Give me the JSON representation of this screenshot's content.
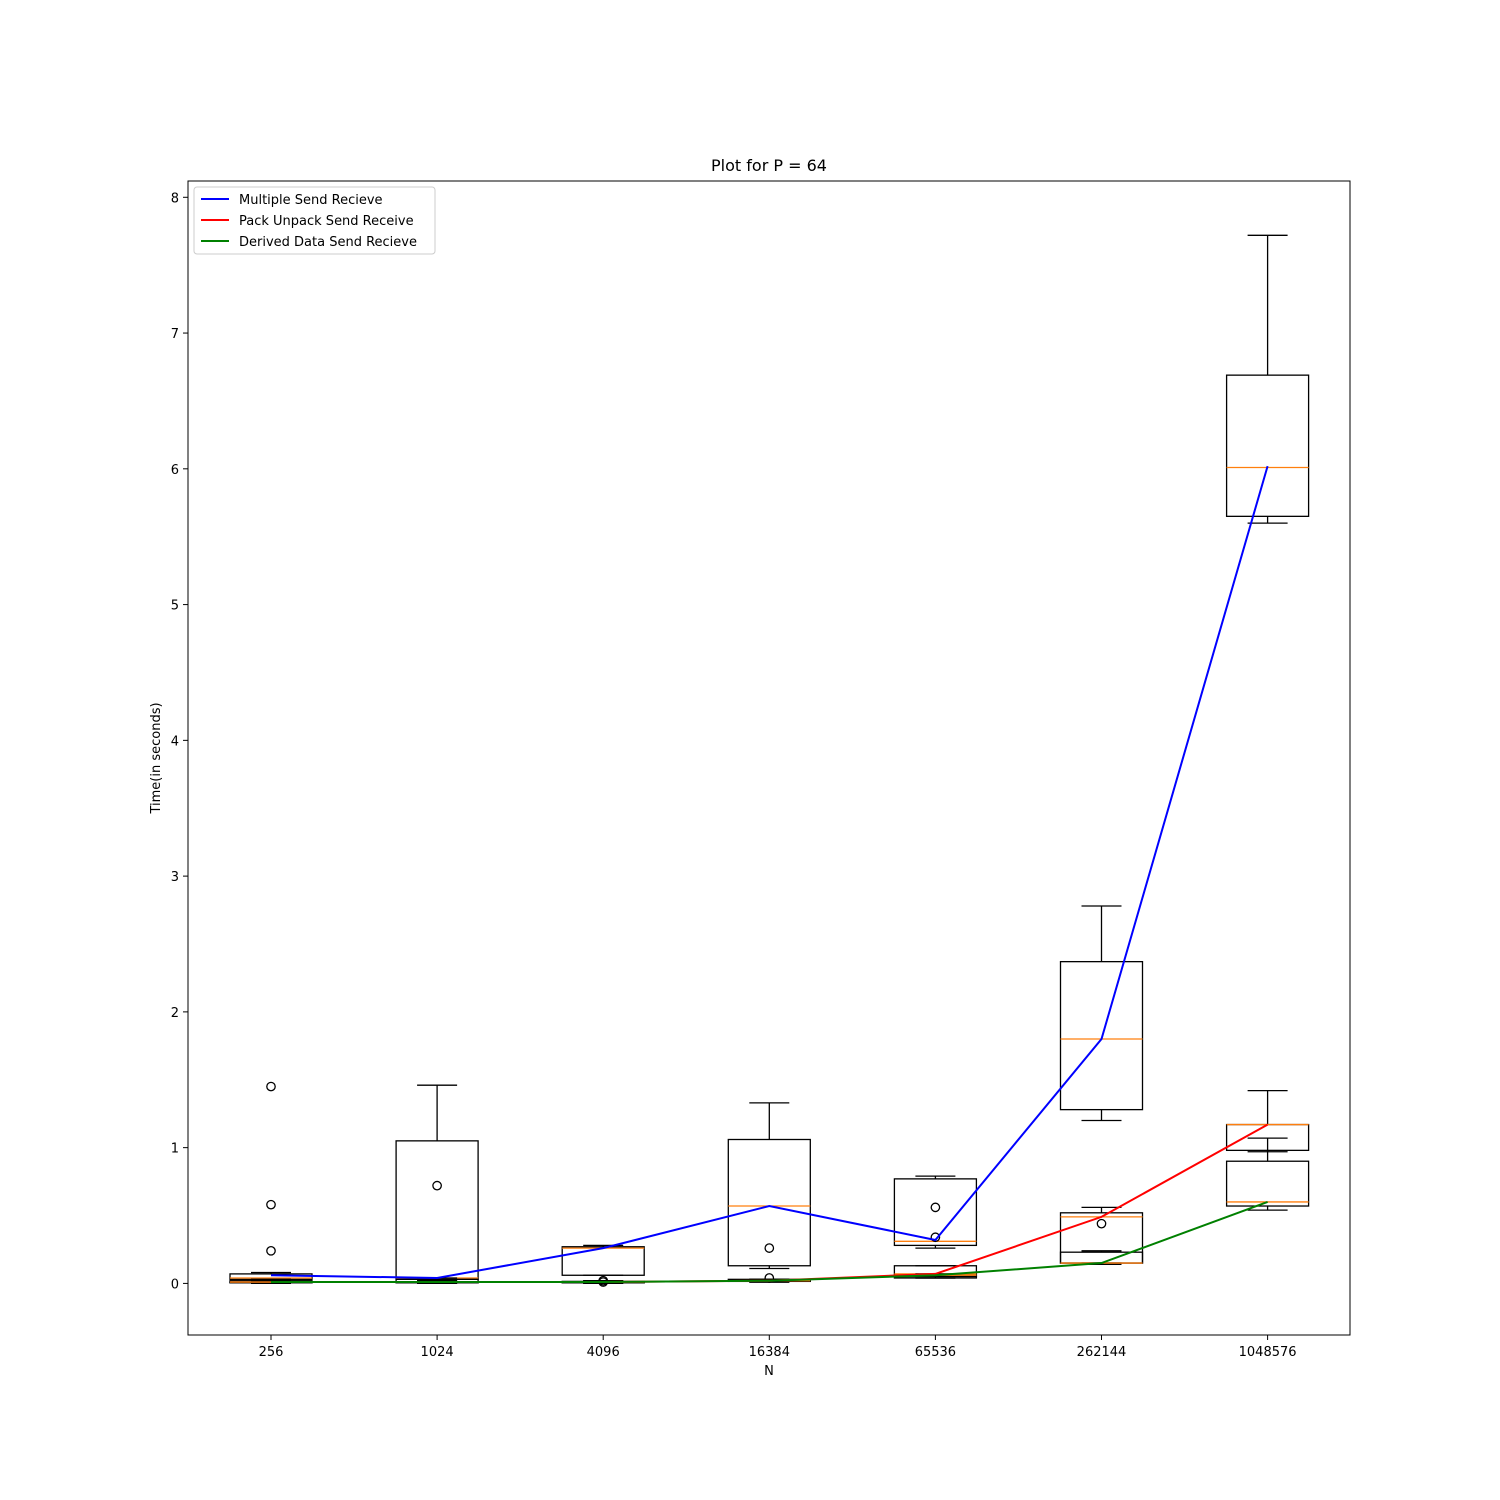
{
  "chart_data": {
    "type": "box",
    "title": "Plot for P = 64",
    "xlabel": "N",
    "ylabel": "Time(in seconds)",
    "ylim": [
      -0.38,
      8.12
    ],
    "yticks": [
      0,
      1,
      2,
      3,
      4,
      5,
      6,
      7,
      8
    ],
    "categories": [
      "256",
      "1024",
      "4096",
      "16384",
      "65536",
      "262144",
      "1048576"
    ],
    "legend_position": "upper-left",
    "series": [
      {
        "name": "Multiple Send Recieve",
        "color": "#0000ff",
        "line_values": [
          0.06,
          0.04,
          0.26,
          0.57,
          0.32,
          1.8,
          6.02
        ],
        "boxes": [
          {
            "whislo": 0.02,
            "q1": 0.03,
            "med": 0.04,
            "q3": 0.07,
            "whishi": 0.08,
            "fliers": [
              1.45,
              0.58,
              0.24
            ]
          },
          {
            "whislo": 0.02,
            "q1": 0.03,
            "med": 0.04,
            "q3": 1.05,
            "whishi": 1.46,
            "fliers": [
              0.72
            ]
          },
          {
            "whislo": 0.06,
            "q1": 0.06,
            "med": 0.26,
            "q3": 0.27,
            "whishi": 0.28,
            "fliers": [
              0.02,
              0.01
            ]
          },
          {
            "whislo": 0.11,
            "q1": 0.13,
            "med": 0.57,
            "q3": 1.06,
            "whishi": 1.33,
            "fliers": [
              0.26,
              0.04
            ]
          },
          {
            "whislo": 0.26,
            "q1": 0.28,
            "med": 0.31,
            "q3": 0.77,
            "whishi": 0.79,
            "fliers": [
              0.56,
              0.34
            ]
          },
          {
            "whislo": 1.2,
            "q1": 1.28,
            "med": 1.8,
            "q3": 2.37,
            "whishi": 2.78,
            "fliers": []
          },
          {
            "whislo": 5.6,
            "q1": 5.65,
            "med": 6.01,
            "q3": 6.69,
            "whishi": 7.72,
            "fliers": []
          }
        ]
      },
      {
        "name": "Pack Unpack Send Receive",
        "color": "#ff0000",
        "line_values": [
          0.01,
          0.01,
          0.01,
          0.02,
          0.07,
          0.49,
          1.17
        ],
        "boxes": [
          {
            "whislo": 0.0,
            "q1": 0.005,
            "med": 0.01,
            "q3": 0.02,
            "whishi": 0.03,
            "fliers": []
          },
          {
            "whislo": 0.0,
            "q1": 0.005,
            "med": 0.01,
            "q3": 0.03,
            "whishi": 0.04,
            "fliers": []
          },
          {
            "whislo": 0.0,
            "q1": 0.005,
            "med": 0.01,
            "q3": 0.015,
            "whishi": 0.02,
            "fliers": []
          },
          {
            "whislo": 0.01,
            "q1": 0.015,
            "med": 0.02,
            "q3": 0.03,
            "whishi": 0.03,
            "fliers": []
          },
          {
            "whislo": 0.04,
            "q1": 0.05,
            "med": 0.07,
            "q3": 0.13,
            "whishi": 0.13,
            "fliers": []
          },
          {
            "whislo": 0.15,
            "q1": 0.15,
            "med": 0.49,
            "q3": 0.52,
            "whishi": 0.56,
            "fliers": [
              0.44
            ]
          },
          {
            "whislo": 0.97,
            "q1": 0.98,
            "med": 1.17,
            "q3": 1.17,
            "whishi": 1.42,
            "fliers": []
          }
        ]
      },
      {
        "name": "Derived Data Send Recieve",
        "color": "#008000",
        "line_values": [
          0.01,
          0.01,
          0.01,
          0.02,
          0.06,
          0.15,
          0.6
        ],
        "boxes": [
          {
            "whislo": 0.0,
            "q1": 0.005,
            "med": 0.01,
            "q3": 0.01,
            "whishi": 0.02,
            "fliers": []
          },
          {
            "whislo": 0.0,
            "q1": 0.005,
            "med": 0.01,
            "q3": 0.01,
            "whishi": 0.02,
            "fliers": []
          },
          {
            "whislo": 0.0,
            "q1": 0.005,
            "med": 0.01,
            "q3": 0.01,
            "whishi": 0.02,
            "fliers": []
          },
          {
            "whislo": 0.01,
            "q1": 0.015,
            "med": 0.02,
            "q3": 0.02,
            "whishi": 0.03,
            "fliers": []
          },
          {
            "whislo": 0.04,
            "q1": 0.04,
            "med": 0.06,
            "q3": 0.06,
            "whishi": 0.07,
            "fliers": []
          },
          {
            "whislo": 0.14,
            "q1": 0.15,
            "med": 0.15,
            "q3": 0.23,
            "whishi": 0.24,
            "fliers": []
          },
          {
            "whislo": 0.54,
            "q1": 0.57,
            "med": 0.6,
            "q3": 0.9,
            "whishi": 1.07,
            "fliers": []
          }
        ]
      }
    ],
    "box_style": {
      "box_color": "#000000",
      "median_color": "#ff7f0e"
    }
  }
}
